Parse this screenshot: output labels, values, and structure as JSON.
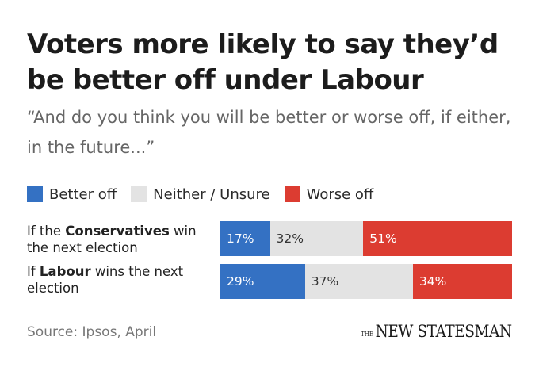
{
  "header": {
    "title": "Voters more likely to say they’d be better off under Labour",
    "subtitle": "“And do you think you will be better or worse off, if either, in the future...”"
  },
  "chart_data": {
    "type": "bar",
    "orientation": "horizontal",
    "stacked": true,
    "unit": "%",
    "categories": [
      "If the Conservatives win the next election",
      "If Labour wins the next election"
    ],
    "category_parts": [
      {
        "pre": "If the ",
        "bold": "Conservatives",
        "post": " win the next election"
      },
      {
        "pre": "If ",
        "bold": "Labour",
        "post": " wins the next election"
      }
    ],
    "series": [
      {
        "name": "Better off",
        "color": "#3471c3",
        "text_color": "#ffffff",
        "values": [
          17,
          29
        ]
      },
      {
        "name": "Neither / Unsure",
        "color": "#e3e3e3",
        "text_color": "#333333",
        "values": [
          32,
          37
        ]
      },
      {
        "name": "Worse off",
        "color": "#dc3c31",
        "text_color": "#ffffff",
        "values": [
          51,
          34
        ]
      }
    ],
    "xlim": [
      0,
      100
    ],
    "legend": "top-left"
  },
  "footer": {
    "source": "Source: Ipsos, April",
    "logo_the": "THE",
    "logo_name": "NEW STATESMAN"
  }
}
